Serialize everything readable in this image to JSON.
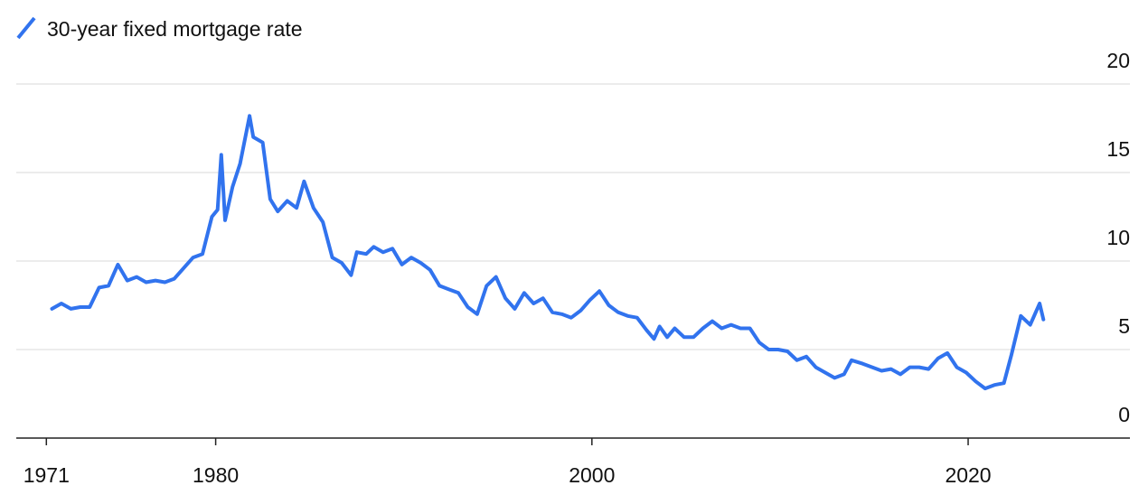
{
  "chart_data": {
    "type": "line",
    "x": [
      1971.3,
      1971.8,
      1972.3,
      1972.8,
      1973.3,
      1973.8,
      1974.3,
      1974.8,
      1975.3,
      1975.8,
      1976.3,
      1976.8,
      1977.3,
      1977.8,
      1978.3,
      1978.8,
      1979.3,
      1979.8,
      1980.1,
      1980.3,
      1980.5,
      1980.9,
      1981.3,
      1981.8,
      1982.0,
      1982.5,
      1982.9,
      1983.3,
      1983.8,
      1984.3,
      1984.7,
      1985.2,
      1985.7,
      1986.2,
      1986.7,
      1987.2,
      1987.5,
      1988.0,
      1988.4,
      1988.9,
      1989.4,
      1989.9,
      1990.4,
      1990.9,
      1991.4,
      1991.9,
      1992.4,
      1992.9,
      1993.4,
      1993.9,
      1994.4,
      1994.9,
      1995.4,
      1995.9,
      1996.4,
      1996.9,
      1997.4,
      1997.9,
      1998.4,
      1998.9,
      1999.4,
      1999.9,
      2000.4,
      2000.9,
      2001.4,
      2001.9,
      2002.4,
      2002.9,
      2003.3,
      2003.6,
      2004.0,
      2004.4,
      2004.9,
      2005.4,
      2005.9,
      2006.4,
      2006.9,
      2007.4,
      2007.9,
      2008.4,
      2008.9,
      2009.4,
      2009.9,
      2010.4,
      2010.9,
      2011.4,
      2011.9,
      2012.4,
      2012.9,
      2013.4,
      2013.8,
      2014.4,
      2014.9,
      2015.4,
      2015.9,
      2016.4,
      2016.9,
      2017.4,
      2017.9,
      2018.4,
      2018.9,
      2019.4,
      2019.9,
      2020.4,
      2020.9,
      2021.4,
      2021.9,
      2022.3,
      2022.8,
      2023.3,
      2023.8,
      2024.0
    ],
    "series": [
      {
        "name": "30-year fixed mortgage rate",
        "color": "#3173ee",
        "values": [
          7.3,
          7.6,
          7.3,
          7.4,
          7.4,
          8.5,
          8.6,
          9.8,
          8.9,
          9.1,
          8.8,
          8.9,
          8.8,
          9.0,
          9.6,
          10.2,
          10.4,
          12.5,
          12.9,
          16.0,
          12.3,
          14.2,
          15.5,
          18.2,
          17.0,
          16.7,
          13.5,
          12.8,
          13.4,
          13.0,
          14.5,
          13.0,
          12.2,
          10.2,
          9.9,
          9.2,
          10.5,
          10.4,
          10.8,
          10.5,
          10.7,
          9.8,
          10.2,
          9.9,
          9.5,
          8.6,
          8.4,
          8.2,
          7.4,
          7.0,
          8.6,
          9.1,
          7.9,
          7.3,
          8.2,
          7.6,
          7.9,
          7.1,
          7.0,
          6.8,
          7.2,
          7.8,
          8.3,
          7.5,
          7.1,
          6.9,
          6.8,
          6.1,
          5.6,
          6.3,
          5.7,
          6.2,
          5.7,
          5.7,
          6.2,
          6.6,
          6.2,
          6.4,
          6.2,
          6.2,
          5.4,
          5.0,
          5.0,
          4.9,
          4.4,
          4.6,
          4.0,
          3.7,
          3.4,
          3.6,
          4.4,
          4.2,
          4.0,
          3.8,
          3.9,
          3.6,
          4.0,
          4.0,
          3.9,
          4.5,
          4.8,
          4.0,
          3.7,
          3.2,
          2.8,
          3.0,
          3.1,
          4.7,
          6.9,
          6.4,
          7.6,
          6.7
        ]
      }
    ],
    "xlim": [
      1969.4,
      2028.6
    ],
    "xticks": [
      1971,
      1980,
      2000,
      2020
    ],
    "ylim": [
      0,
      20
    ],
    "yticks": [
      0,
      5,
      10,
      15,
      20
    ],
    "grid": true
  }
}
